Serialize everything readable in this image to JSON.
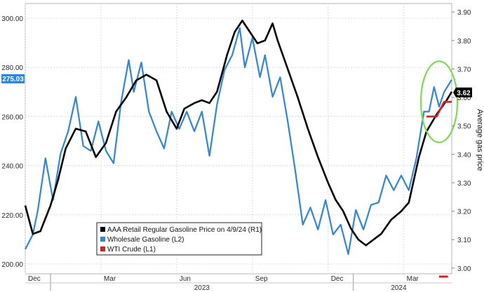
{
  "chart_data": {
    "type": "line",
    "y_left_label": "",
    "y_right_label": "Average gas price",
    "y_left_ticks": [
      "300.00",
      "280.00",
      "260.00",
      "240.00",
      "220.00",
      "200.00"
    ],
    "y_left_range": [
      196,
      306
    ],
    "y_right_ticks": [
      "3.90",
      "3.80",
      "3.70",
      "3.60",
      "3.50",
      "3.40",
      "3.30",
      "3.20",
      "3.10",
      "3.00"
    ],
    "y_right_range": [
      2.98,
      3.93
    ],
    "x_month_labels": [
      "Dec",
      "Mar",
      "Jun",
      "Sep",
      "Dec",
      "Mar"
    ],
    "x_year_labels": [
      "2023",
      "2024"
    ],
    "x_range_months": [
      0,
      16.9
    ],
    "legend": [
      {
        "label": "AAA Retail Regular Gasoline Price on 4/9/24 (R1)",
        "color": "#000000"
      },
      {
        "label": "Wholesale Gasoline (L2)",
        "color": "#2f86d8"
      },
      {
        "label": "WTI Crude (L1)",
        "color": "#d81e1e"
      }
    ],
    "badges": {
      "wholesale_last": "275.03",
      "retail_last": "3.62"
    },
    "series": [
      {
        "name": "AAA Retail Regular Gasoline Price on 4/9/24 (R1)",
        "axis": "right",
        "color": "#000000",
        "points": [
          [
            0.0,
            3.22
          ],
          [
            0.3,
            3.12
          ],
          [
            0.6,
            3.13
          ],
          [
            1.0,
            3.22
          ],
          [
            1.3,
            3.31
          ],
          [
            1.6,
            3.42
          ],
          [
            2.0,
            3.49
          ],
          [
            2.4,
            3.48
          ],
          [
            2.8,
            3.39
          ],
          [
            3.2,
            3.44
          ],
          [
            3.6,
            3.55
          ],
          [
            4.0,
            3.6
          ],
          [
            4.4,
            3.66
          ],
          [
            4.8,
            3.68
          ],
          [
            5.2,
            3.66
          ],
          [
            5.6,
            3.55
          ],
          [
            6.0,
            3.49
          ],
          [
            6.3,
            3.56
          ],
          [
            6.7,
            3.58
          ],
          [
            7.0,
            3.59
          ],
          [
            7.3,
            3.58
          ],
          [
            7.6,
            3.62
          ],
          [
            8.0,
            3.75
          ],
          [
            8.3,
            3.83
          ],
          [
            8.6,
            3.87
          ],
          [
            8.9,
            3.83
          ],
          [
            9.2,
            3.79
          ],
          [
            9.5,
            3.8
          ],
          [
            9.8,
            3.86
          ],
          [
            10.0,
            3.8
          ],
          [
            10.4,
            3.7
          ],
          [
            10.8,
            3.6
          ],
          [
            11.2,
            3.49
          ],
          [
            11.6,
            3.39
          ],
          [
            12.0,
            3.3
          ],
          [
            12.3,
            3.24
          ],
          [
            12.6,
            3.2
          ],
          [
            12.9,
            3.14
          ],
          [
            13.2,
            3.1
          ],
          [
            13.5,
            3.08
          ],
          [
            13.8,
            3.1
          ],
          [
            14.1,
            3.12
          ],
          [
            14.5,
            3.17
          ],
          [
            14.9,
            3.2
          ],
          [
            15.2,
            3.23
          ],
          [
            15.6,
            3.39
          ],
          [
            15.9,
            3.48
          ],
          [
            16.3,
            3.54
          ],
          [
            16.7,
            3.59
          ],
          [
            16.9,
            3.62
          ]
        ]
      },
      {
        "name": "Wholesale Gasoline (L2)",
        "axis": "left",
        "color": "#2f86d8",
        "points": [
          [
            0.0,
            206
          ],
          [
            0.3,
            212
          ],
          [
            0.5,
            222
          ],
          [
            0.8,
            243
          ],
          [
            1.1,
            226
          ],
          [
            1.4,
            245
          ],
          [
            1.7,
            254
          ],
          [
            2.0,
            268
          ],
          [
            2.3,
            248
          ],
          [
            2.6,
            246
          ],
          [
            2.9,
            258
          ],
          [
            3.2,
            246
          ],
          [
            3.5,
            241
          ],
          [
            3.8,
            266
          ],
          [
            4.1,
            283
          ],
          [
            4.3,
            270
          ],
          [
            4.6,
            282
          ],
          [
            4.9,
            262
          ],
          [
            5.2,
            254
          ],
          [
            5.5,
            247
          ],
          [
            5.8,
            262
          ],
          [
            6.1,
            255
          ],
          [
            6.4,
            262
          ],
          [
            6.7,
            254
          ],
          [
            7.0,
            262
          ],
          [
            7.3,
            244
          ],
          [
            7.6,
            265
          ],
          [
            7.9,
            279
          ],
          [
            8.2,
            285
          ],
          [
            8.5,
            296
          ],
          [
            8.7,
            280
          ],
          [
            9.0,
            292
          ],
          [
            9.3,
            276
          ],
          [
            9.5,
            285
          ],
          [
            9.8,
            268
          ],
          [
            10.1,
            276
          ],
          [
            10.4,
            258
          ],
          [
            10.7,
            238
          ],
          [
            11.0,
            216
          ],
          [
            11.3,
            223
          ],
          [
            11.6,
            214
          ],
          [
            11.9,
            226
          ],
          [
            12.2,
            212
          ],
          [
            12.5,
            216
          ],
          [
            12.8,
            204
          ],
          [
            13.1,
            222
          ],
          [
            13.4,
            214
          ],
          [
            13.7,
            224
          ],
          [
            14.0,
            225
          ],
          [
            14.3,
            236
          ],
          [
            14.6,
            230
          ],
          [
            14.9,
            236
          ],
          [
            15.2,
            230
          ],
          [
            15.5,
            243
          ],
          [
            15.8,
            262
          ],
          [
            16.0,
            262
          ],
          [
            16.2,
            272
          ],
          [
            16.4,
            264
          ],
          [
            16.6,
            270
          ],
          [
            16.9,
            275
          ]
        ]
      },
      {
        "name": "WTI Crude (L1)",
        "axis": "left",
        "color": "#d81e1e",
        "points": [
          [
            15.9,
            260
          ],
          [
            16.3,
            260
          ],
          [
            16.6,
            266
          ],
          [
            16.9,
            266
          ]
        ]
      }
    ],
    "annotations": [
      {
        "type": "ellipse",
        "description": "highlight",
        "color": "#7ed957"
      }
    ]
  }
}
